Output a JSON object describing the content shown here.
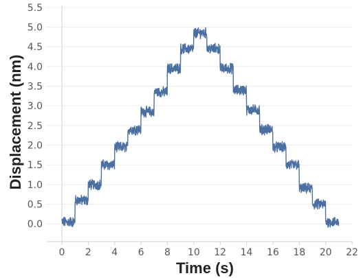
{
  "chart_data": {
    "type": "line",
    "title": "",
    "xlabel": "Time (s)",
    "ylabel": "Displacement (nm)",
    "xlim": [
      -1.2,
      22.0
    ],
    "ylim": [
      -0.45,
      5.55
    ],
    "x_ticks": [
      0,
      2,
      4,
      6,
      8,
      10,
      12,
      14,
      16,
      18,
      20,
      22
    ],
    "x_tick_labels": [
      "0",
      "2",
      "4",
      "6",
      "8",
      "10",
      "12",
      "14",
      "16",
      "18",
      "20",
      "22"
    ],
    "y_ticks": [
      0.0,
      0.5,
      1.0,
      1.5,
      2.0,
      2.5,
      3.0,
      3.5,
      4.0,
      4.5,
      5.0,
      5.5
    ],
    "y_tick_labels": [
      "0.0",
      "0.5",
      "1.0",
      "1.5",
      "2.0",
      "2.5",
      "3.0",
      "3.5",
      "4.0",
      "4.5",
      "5.0",
      "5.5"
    ],
    "grid": true,
    "legend": "none",
    "line_color": "#4a6fa0",
    "series": [
      {
        "style": "staircase with noise",
        "steps": [
          {
            "x_start": 0.0,
            "x_end": 1.0,
            "y": 0.05
          },
          {
            "x_start": 1.0,
            "x_end": 2.0,
            "y": 0.6
          },
          {
            "x_start": 2.0,
            "x_end": 3.0,
            "y": 1.0
          },
          {
            "x_start": 3.0,
            "x_end": 4.0,
            "y": 1.5
          },
          {
            "x_start": 4.0,
            "x_end": 5.0,
            "y": 1.95
          },
          {
            "x_start": 5.0,
            "x_end": 6.0,
            "y": 2.4
          },
          {
            "x_start": 6.0,
            "x_end": 7.0,
            "y": 2.85
          },
          {
            "x_start": 7.0,
            "x_end": 8.0,
            "y": 3.35
          },
          {
            "x_start": 8.0,
            "x_end": 9.0,
            "y": 3.95
          },
          {
            "x_start": 9.0,
            "x_end": 10.0,
            "y": 4.45
          },
          {
            "x_start": 10.0,
            "x_end": 11.0,
            "y": 4.85
          },
          {
            "x_start": 11.0,
            "x_end": 12.0,
            "y": 4.45
          },
          {
            "x_start": 12.0,
            "x_end": 13.0,
            "y": 3.95
          },
          {
            "x_start": 13.0,
            "x_end": 14.0,
            "y": 3.4
          },
          {
            "x_start": 14.0,
            "x_end": 15.0,
            "y": 2.9
          },
          {
            "x_start": 15.0,
            "x_end": 16.0,
            "y": 2.4
          },
          {
            "x_start": 16.0,
            "x_end": 17.0,
            "y": 1.95
          },
          {
            "x_start": 17.0,
            "x_end": 18.0,
            "y": 1.5
          },
          {
            "x_start": 18.0,
            "x_end": 19.0,
            "y": 0.9
          },
          {
            "x_start": 19.0,
            "x_end": 20.0,
            "y": 0.5
          },
          {
            "x_start": 20.0,
            "x_end": 21.0,
            "y": 0.05
          }
        ]
      }
    ]
  }
}
